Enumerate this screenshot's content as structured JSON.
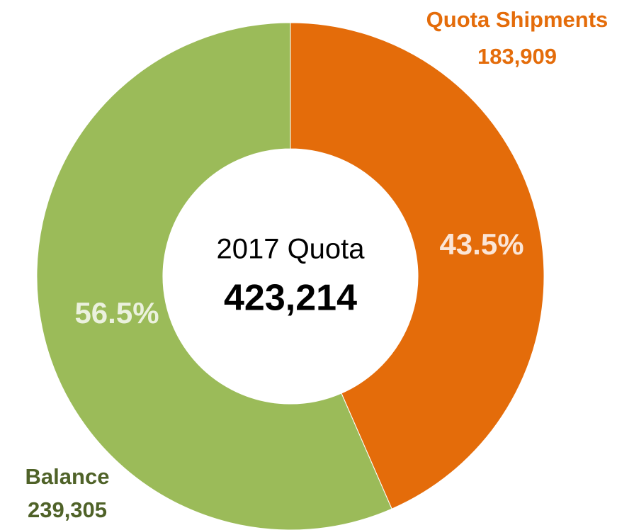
{
  "chart_data": {
    "type": "donut",
    "categories": [
      "Quota Shipments",
      "Balance"
    ],
    "values": [
      183909,
      239305
    ],
    "value_labels": [
      "183,909",
      "239,305"
    ],
    "percentages": [
      {
        "value": 43.5,
        "label": "43.5%"
      },
      {
        "value": 56.5,
        "label": "56.5%"
      }
    ],
    "colors": [
      "#e46c0a",
      "#9bbb59"
    ],
    "label_colors": [
      "#e46c0a",
      "#4f6228"
    ],
    "center_label": "2017 Quota",
    "total": {
      "value": 423214,
      "label": "423,214"
    }
  }
}
